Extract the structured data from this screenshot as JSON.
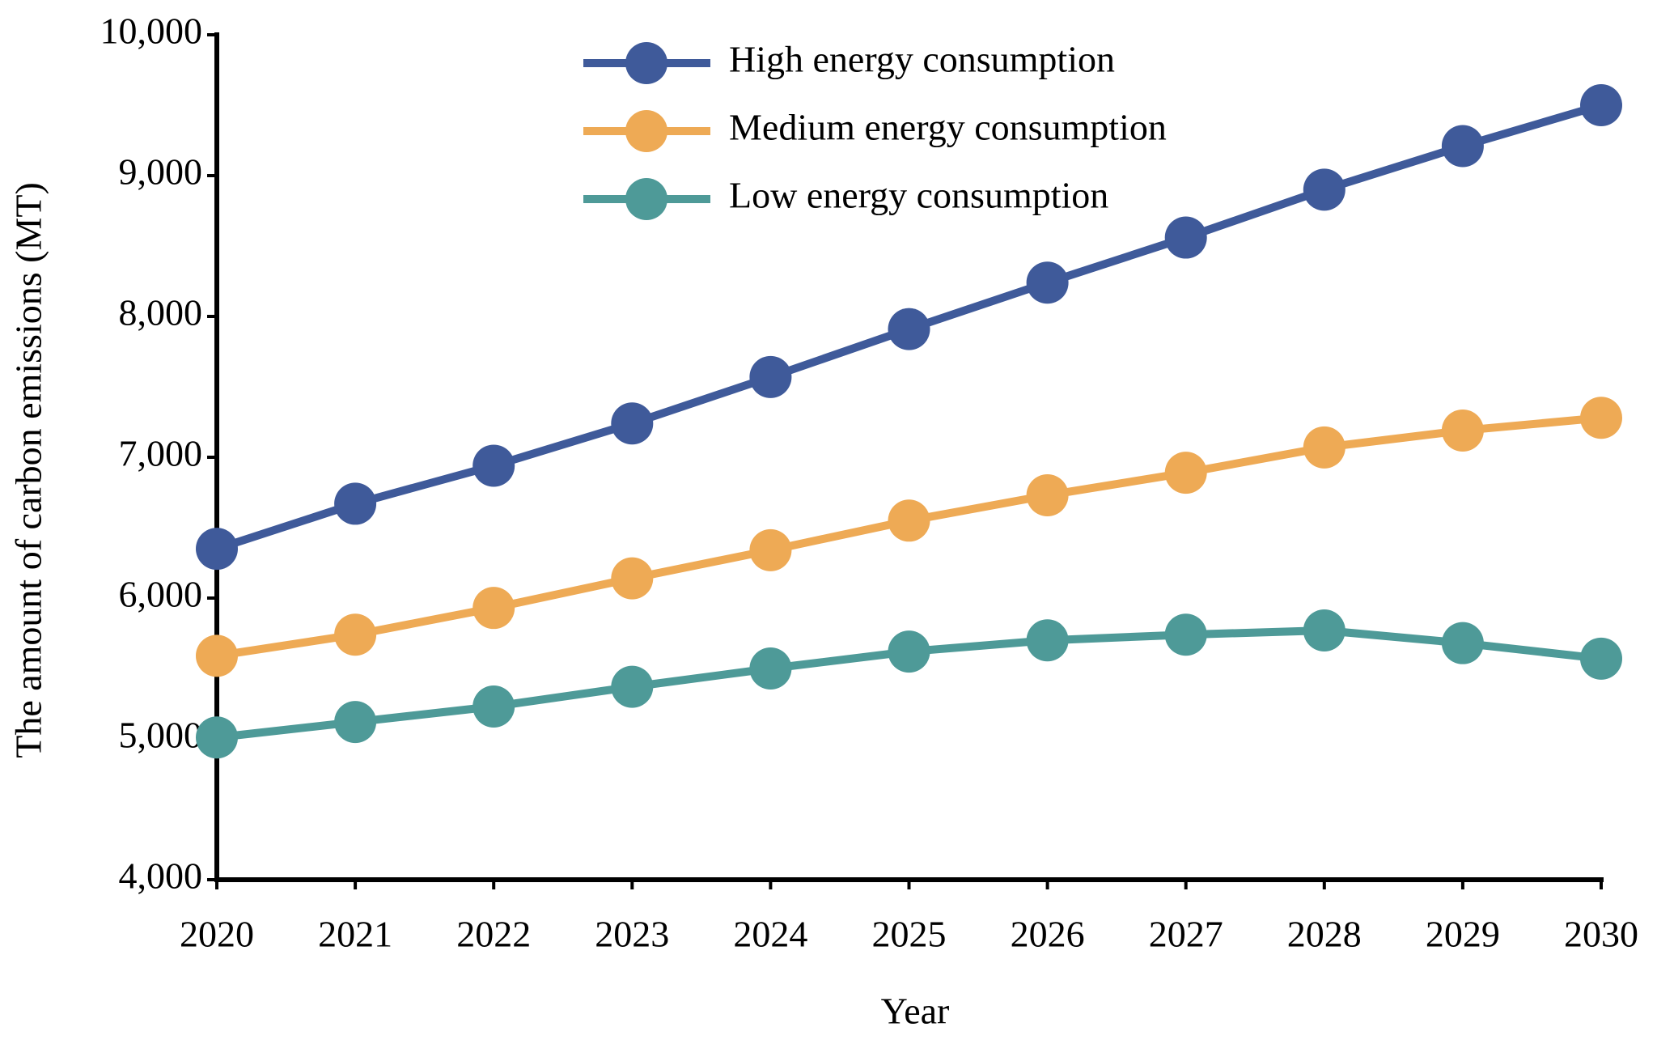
{
  "chart_data": {
    "type": "line",
    "x_label": "Year",
    "y_label": "The amount of carbon emissions (MT)",
    "x": [
      2020,
      2021,
      2022,
      2023,
      2024,
      2025,
      2026,
      2027,
      2028,
      2029,
      2030
    ],
    "xlim": [
      2020,
      2030
    ],
    "xticks": [
      2020,
      2021,
      2022,
      2023,
      2024,
      2025,
      2026,
      2027,
      2028,
      2029,
      2030
    ],
    "ylim": [
      4000,
      10000
    ],
    "yticks": [
      {
        "value": 4000,
        "label": "4,000"
      },
      {
        "value": 5000,
        "label": "5,000"
      },
      {
        "value": 6000,
        "label": "6,000"
      },
      {
        "value": 7000,
        "label": "7,000"
      },
      {
        "value": 8000,
        "label": "8,000"
      },
      {
        "value": 9000,
        "label": "9,000"
      },
      {
        "value": 10000,
        "label": "10,000"
      }
    ],
    "grid": false,
    "legend": "upper center",
    "series": [
      {
        "name": "High energy consumption",
        "color": "#3f5a9a",
        "values": [
          6350,
          6670,
          6940,
          7240,
          7570,
          7910,
          8240,
          8560,
          8900,
          9210,
          9500
        ]
      },
      {
        "name": "Medium energy consumption",
        "color": "#eeaa55",
        "values": [
          5590,
          5740,
          5930,
          6140,
          6340,
          6550,
          6730,
          6890,
          7070,
          7190,
          7280
        ]
      },
      {
        "name": "Low energy consumption",
        "color": "#4e9a98",
        "values": [
          5010,
          5120,
          5230,
          5370,
          5500,
          5620,
          5700,
          5740,
          5770,
          5680,
          5570
        ]
      }
    ]
  }
}
